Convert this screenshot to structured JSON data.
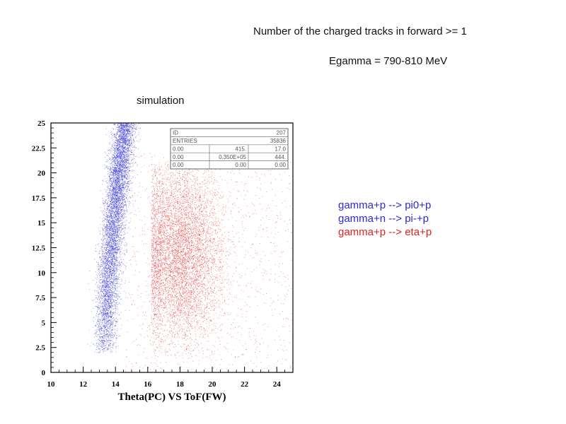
{
  "header": {
    "line1": "Number of the charged tracks in forward >= 1",
    "line2": "Egamma = 790-810 MeV",
    "sim_label": "simulation"
  },
  "legend": [
    {
      "label": "gamma+p --> pi0+p",
      "color": "#2a2ad4"
    },
    {
      "label": "gamma+n --> pi-+p",
      "color": "#2a2ad4"
    },
    {
      "label": "gamma+p --> eta+p",
      "color": "#e02020"
    }
  ],
  "chart_data": {
    "type": "scatter",
    "title": "Theta(PC) VS ToF(FW)",
    "xlim": [
      10,
      25
    ],
    "ylim": [
      0,
      25
    ],
    "x_ticks": [
      10,
      12,
      14,
      16,
      18,
      20,
      22,
      24
    ],
    "y_ticks": [
      0,
      2.5,
      5,
      7.5,
      10,
      12.5,
      15,
      17.5,
      20,
      22.5,
      25
    ],
    "x_tick_labels": [
      "10",
      "12",
      "14",
      "16",
      "18",
      "20",
      "22",
      "24"
    ],
    "y_tick_labels": [
      "0",
      "2.5",
      "5",
      "7.5",
      "10",
      "12.5",
      "15",
      "17.5",
      "20",
      "22.5",
      "25"
    ],
    "grid": false,
    "stats_box": {
      "rows": [
        [
          "ID",
          "",
          "207"
        ],
        [
          "ENTRIES",
          "",
          "35836"
        ],
        [
          "0.00",
          "415.",
          "17.0"
        ],
        [
          "0.00",
          "0.350E+05",
          "444."
        ],
        [
          "0.00",
          "0.00",
          "0.00"
        ]
      ]
    },
    "series": [
      {
        "color": "#2a2ad4",
        "distribution": {
          "x_center_at_y": [
            [
              0,
              13.2
            ],
            [
              5,
              13.4
            ],
            [
              10,
              13.6
            ],
            [
              15,
              13.9
            ],
            [
              20,
              14.2
            ],
            [
              25,
              14.6
            ]
          ],
          "x_width": 0.35,
          "y_range": [
            2,
            25
          ],
          "y_peak": 14.5,
          "points": 7000
        }
      },
      {
        "color": "#e02020",
        "distribution": {
          "x_center": 18.0,
          "x_sd": 1.3,
          "y_center": 12.0,
          "y_sd": 4.5,
          "x_range": [
            16.2,
            25
          ],
          "y_range": [
            1.5,
            21
          ],
          "points": 6500
        }
      },
      {
        "color": "#e02020",
        "distribution": {
          "uniform_x": [
            14.5,
            25
          ],
          "uniform_y": [
            0,
            22
          ],
          "points": 1200
        }
      }
    ]
  }
}
